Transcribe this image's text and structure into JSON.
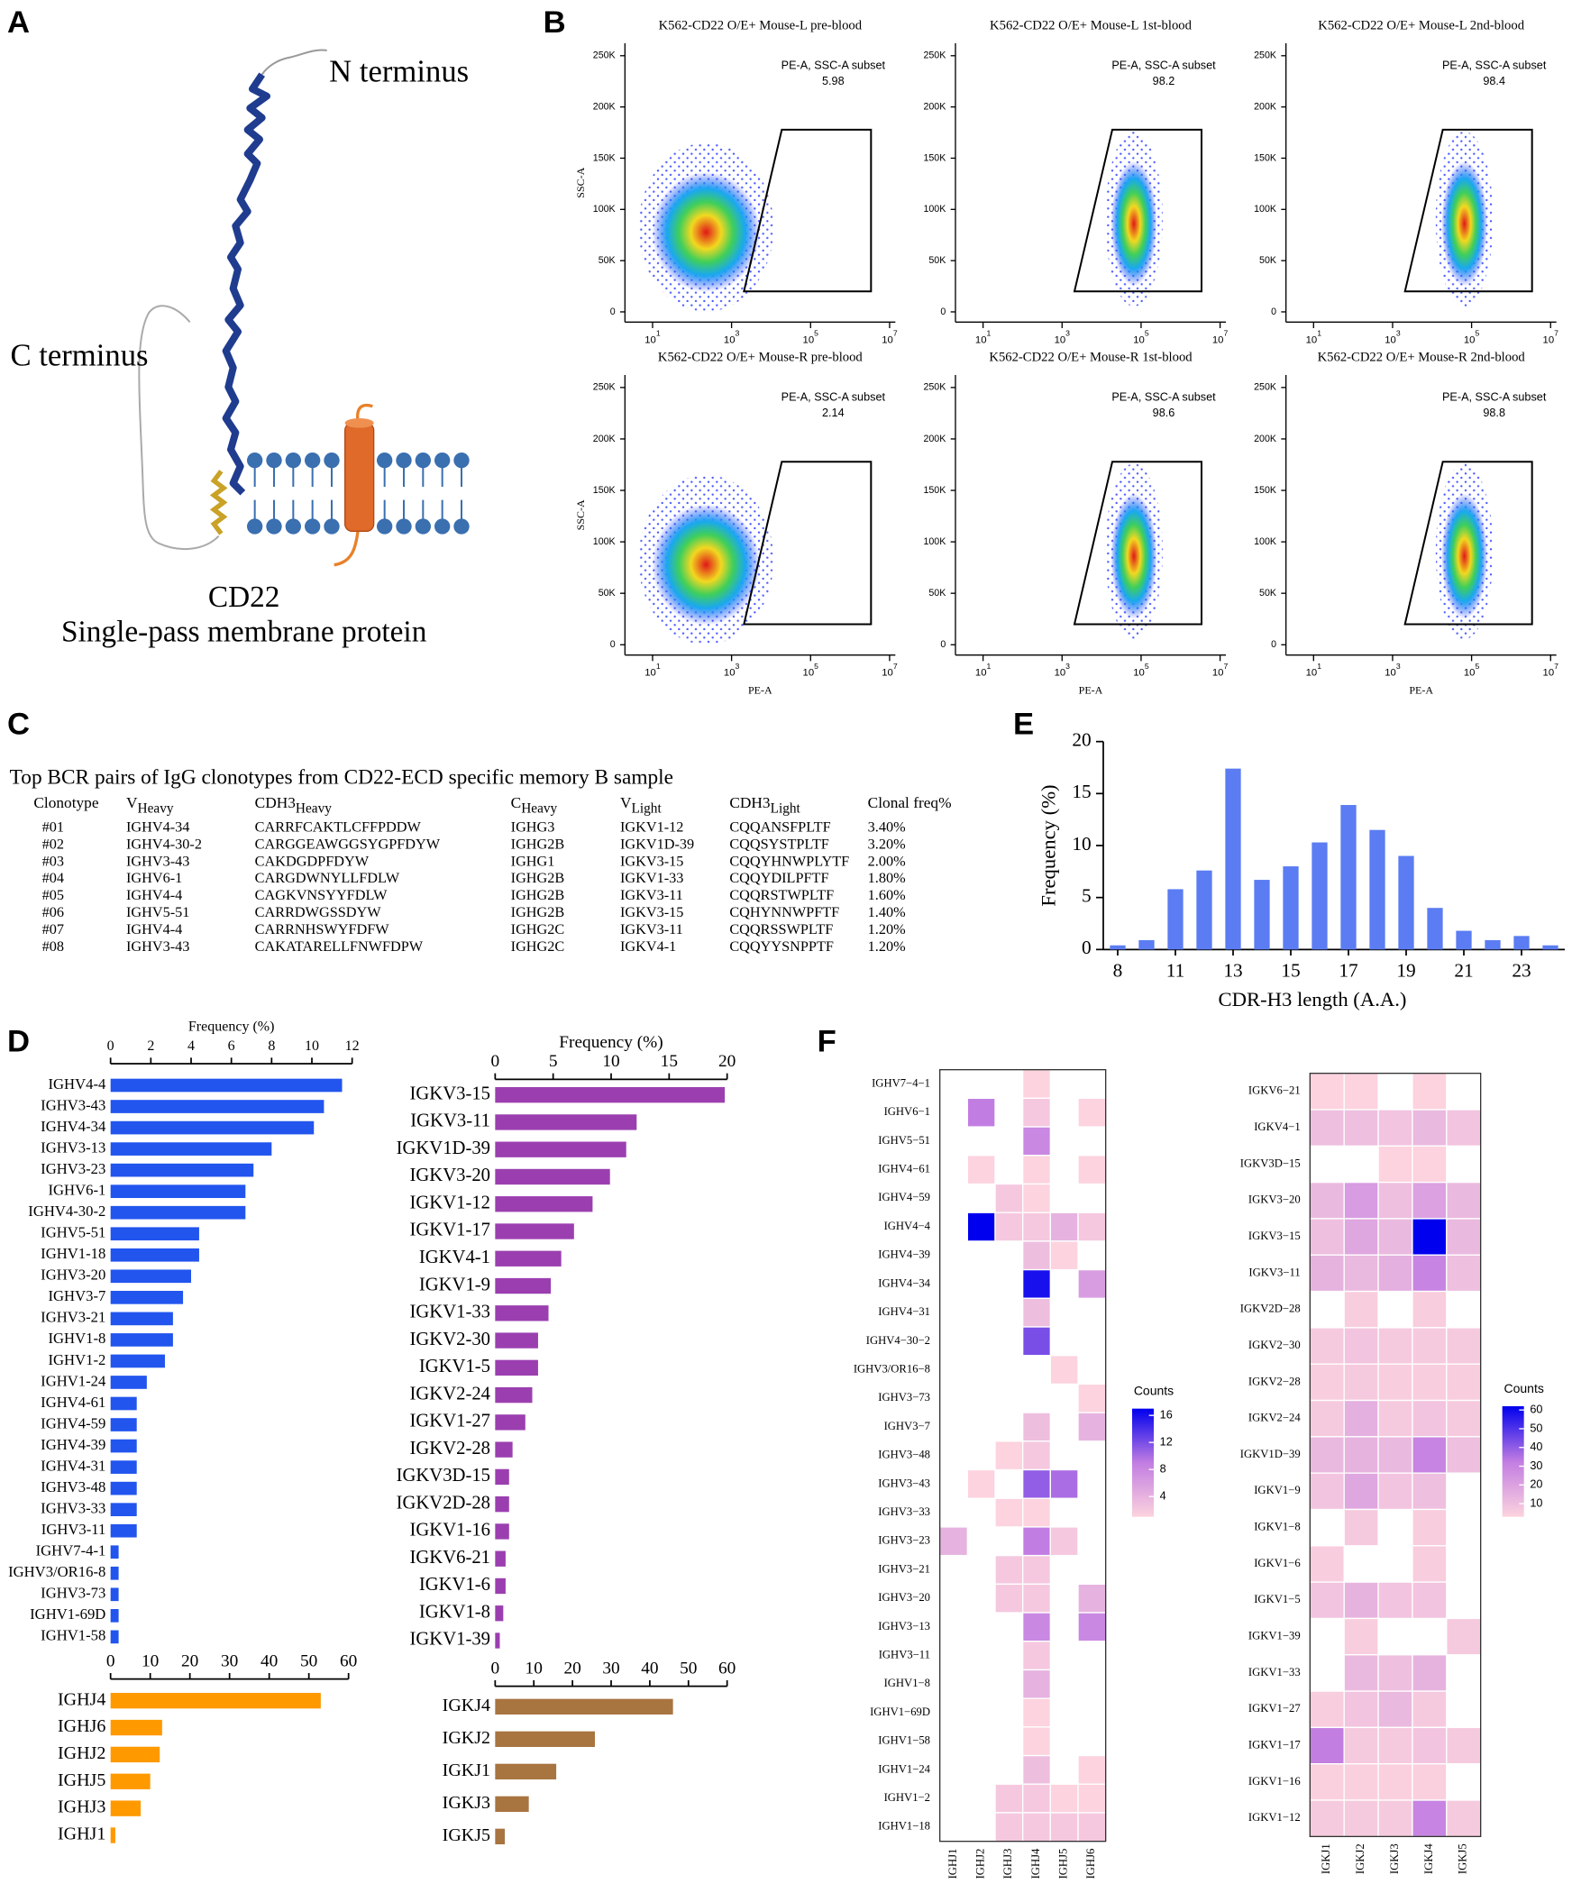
{
  "panel_labels": [
    "A",
    "B",
    "C",
    "D",
    "E",
    "F"
  ],
  "diagram": {
    "n_terminus": "N terminus",
    "c_terminus": "C terminus",
    "name": "CD22",
    "description": "Single-pass membrane protein"
  },
  "table": {
    "title": "Top BCR pairs of IgG clonotypes from CD22-ECD specific memory B sample",
    "header": [
      {
        "text": "Clonotype"
      },
      {
        "text": "V",
        "sub": "Heavy"
      },
      {
        "text": "CDH3",
        "sub": "Heavy"
      },
      {
        "text": "C",
        "sub": "Heavy"
      },
      {
        "text": "V",
        "sub": "Light"
      },
      {
        "text": "CDH3",
        "sub": "Light"
      },
      {
        "text": "Clonal freq%"
      }
    ],
    "rows": [
      [
        "#01",
        "IGHV4-34",
        "CARRFCAKTLCFFPDDW",
        "IGHG3",
        "IGKV1-12",
        "CQQANSFPLTF",
        "3.40%"
      ],
      [
        "#02",
        "IGHV4-30-2",
        "CARGGEAWGGSYGPFDYW",
        "IGHG2B",
        "IGKV1D-39",
        "CQQSYSTPLTF",
        "3.20%"
      ],
      [
        "#03",
        "IGHV3-43",
        "CAKDGDPFDYW",
        "IGHG1",
        "IGKV3-15",
        "CQQYHNWPLYTF",
        "2.00%"
      ],
      [
        "#04",
        "IGHV6-1",
        "CARGDWNYLLFDLW",
        "IGHG2B",
        "IGKV1-33",
        "CQQYDILPFTF",
        "1.80%"
      ],
      [
        "#05",
        "IGHV4-4",
        "CAGKVNSYYFDLW",
        "IGHG2B",
        "IGKV3-11",
        "CQQRSTWPLTF",
        "1.60%"
      ],
      [
        "#06",
        "IGHV5-51",
        "CARRDWGSSDYW",
        "IGHG2B",
        "IGKV3-15",
        "CQHYNNWPFTF",
        "1.40%"
      ],
      [
        "#07",
        "IGHV4-4",
        "CARRNHSWYFDFW",
        "IGHG2C",
        "IGKV3-11",
        "CQQRSSWPLTF",
        "1.20%"
      ],
      [
        "#08",
        "IGHV3-43",
        "CAKATARELLFNWFDPW",
        "IGHG2C",
        "IGKV4-1",
        "CQQYYSNPPTF",
        "1.20%"
      ]
    ]
  },
  "chart_data": [
    {
      "type": "flow",
      "title": "K562-CD22 O/E+ Mouse-L pre-blood",
      "gate_label": "PE-A, SSC-A subset",
      "gate_value": 5.98,
      "ylabel": "SSC-A",
      "xscale": "log",
      "xlim": [
        2,
        14000000
      ],
      "xticks": [
        {
          "value": 10,
          "label": "10",
          "sup": "1"
        },
        {
          "value": 1000,
          "label": "10",
          "sup": "3"
        },
        {
          "value": 100000,
          "label": "10",
          "sup": "5"
        },
        {
          "value": 10000000,
          "label": "10",
          "sup": "7"
        }
      ],
      "ylim": [
        -10000,
        262144
      ],
      "yticks": [
        0,
        {
          "value": 50000,
          "label": "50K"
        },
        {
          "value": 100000,
          "label": "100K"
        },
        {
          "value": 150000,
          "label": "150K"
        },
        {
          "value": 200000,
          "label": "200K"
        },
        {
          "value": 250000,
          "label": "250K"
        }
      ]
    },
    {
      "type": "flow",
      "title": "K562-CD22 O/E+ Mouse-L 1st-blood",
      "gate_label": "PE-A, SSC-A subset",
      "gate_value": 98.2,
      "xscale": "log",
      "xlim": [
        2,
        14000000
      ],
      "xticks": [
        {
          "value": 10,
          "label": "10",
          "sup": "1"
        },
        {
          "value": 1000,
          "label": "10",
          "sup": "3"
        },
        {
          "value": 100000,
          "label": "10",
          "sup": "5"
        },
        {
          "value": 10000000,
          "label": "10",
          "sup": "7"
        }
      ],
      "ylim": [
        -10000,
        262144
      ],
      "yticks": [
        0,
        {
          "value": 50000,
          "label": "50K"
        },
        {
          "value": 100000,
          "label": "100K"
        },
        {
          "value": 150000,
          "label": "150K"
        },
        {
          "value": 200000,
          "label": "200K"
        },
        {
          "value": 250000,
          "label": "250K"
        }
      ]
    },
    {
      "type": "flow",
      "title": "K562-CD22 O/E+ Mouse-L 2nd-blood",
      "gate_label": "PE-A, SSC-A subset",
      "gate_value": 98.4,
      "xscale": "log",
      "xlim": [
        2,
        14000000
      ],
      "xticks": [
        {
          "value": 10,
          "label": "10",
          "sup": "1"
        },
        {
          "value": 1000,
          "label": "10",
          "sup": "3"
        },
        {
          "value": 100000,
          "label": "10",
          "sup": "5"
        },
        {
          "value": 10000000,
          "label": "10",
          "sup": "7"
        }
      ],
      "ylim": [
        -10000,
        262144
      ],
      "yticks": [
        0,
        {
          "value": 50000,
          "label": "50K"
        },
        {
          "value": 100000,
          "label": "100K"
        },
        {
          "value": 150000,
          "label": "150K"
        },
        {
          "value": 200000,
          "label": "200K"
        },
        {
          "value": 250000,
          "label": "250K"
        }
      ]
    },
    {
      "type": "flow",
      "title": "K562-CD22 O/E+ Mouse-R pre-blood",
      "gate_label": "PE-A, SSC-A subset",
      "gate_value": 2.14,
      "ylabel": "SSC-A",
      "xlabel": "PE-A",
      "xscale": "log",
      "xlim": [
        2,
        14000000
      ],
      "xticks": [
        {
          "value": 10,
          "label": "10",
          "sup": "1"
        },
        {
          "value": 1000,
          "label": "10",
          "sup": "3"
        },
        {
          "value": 100000,
          "label": "10",
          "sup": "5"
        },
        {
          "value": 10000000,
          "label": "10",
          "sup": "7"
        }
      ],
      "ylim": [
        -10000,
        262144
      ],
      "yticks": [
        0,
        {
          "value": 50000,
          "label": "50K"
        },
        {
          "value": 100000,
          "label": "100K"
        },
        {
          "value": 150000,
          "label": "150K"
        },
        {
          "value": 200000,
          "label": "200K"
        },
        {
          "value": 250000,
          "label": "250K"
        }
      ]
    },
    {
      "type": "flow",
      "title": "K562-CD22 O/E+ Mouse-R 1st-blood",
      "gate_label": "PE-A, SSC-A subset",
      "gate_value": 98.6,
      "xlabel": "PE-A",
      "xscale": "log",
      "xlim": [
        2,
        14000000
      ],
      "xticks": [
        {
          "value": 10,
          "label": "10",
          "sup": "1"
        },
        {
          "value": 1000,
          "label": "10",
          "sup": "3"
        },
        {
          "value": 100000,
          "label": "10",
          "sup": "5"
        },
        {
          "value": 10000000,
          "label": "10",
          "sup": "7"
        }
      ],
      "ylim": [
        -10000,
        262144
      ],
      "yticks": [
        0,
        {
          "value": 50000,
          "label": "50K"
        },
        {
          "value": 100000,
          "label": "100K"
        },
        {
          "value": 150000,
          "label": "150K"
        },
        {
          "value": 200000,
          "label": "200K"
        },
        {
          "value": 250000,
          "label": "250K"
        }
      ]
    },
    {
      "type": "flow",
      "title": "K562-CD22 O/E+ Mouse-R 2nd-blood",
      "gate_label": "PE-A, SSC-A subset",
      "gate_value": 98.8,
      "xlabel": "PE-A",
      "xscale": "log",
      "xlim": [
        2,
        14000000
      ],
      "xticks": [
        {
          "value": 10,
          "label": "10",
          "sup": "1"
        },
        {
          "value": 1000,
          "label": "10",
          "sup": "3"
        },
        {
          "value": 100000,
          "label": "10",
          "sup": "5"
        },
        {
          "value": 10000000,
          "label": "10",
          "sup": "7"
        }
      ],
      "ylim": [
        -10000,
        262144
      ],
      "yticks": [
        0,
        {
          "value": 50000,
          "label": "50K"
        },
        {
          "value": 100000,
          "label": "100K"
        },
        {
          "value": 150000,
          "label": "150K"
        },
        {
          "value": 200000,
          "label": "200K"
        },
        {
          "value": 250000,
          "label": "250K"
        }
      ]
    },
    {
      "type": "bar",
      "xlabel": "CDR-H3 length (A.A.)",
      "ylabel": "Frequency (%)",
      "color": "#5b7cf2",
      "categories": [
        8,
        null,
        11,
        null,
        13,
        null,
        15,
        null,
        17,
        null,
        19,
        null,
        21,
        null,
        23,
        null
      ],
      "values": [
        0.4,
        0.9,
        5.8,
        7.6,
        17.4,
        6.7,
        8.0,
        10.3,
        13.9,
        11.5,
        9.0,
        4.0,
        1.8,
        0.9,
        1.3,
        0.4
      ],
      "ylim": [
        0,
        20
      ],
      "yticks": [
        0,
        5,
        10,
        15,
        20
      ]
    },
    {
      "type": "barh",
      "xlabel": "Frequency (%)",
      "color": "#2255ee",
      "categories": [
        "IGHV4-4",
        "IGHV3-43",
        "IGHV4-34",
        "IGHV3-13",
        "IGHV3-23",
        "IGHV6-1",
        "IGHV4-30-2",
        "IGHV5-51",
        "IGHV1-18",
        "IGHV3-20",
        "IGHV3-7",
        "IGHV3-21",
        "IGHV1-8",
        "IGHV1-2",
        "IGHV1-24",
        "IGHV4-61",
        "IGHV4-59",
        "IGHV4-39",
        "IGHV4-31",
        "IGHV3-48",
        "IGHV3-33",
        "IGHV3-11",
        "IGHV7-4-1",
        "IGHV3/OR16-8",
        "IGHV3-73",
        "IGHV1-69D",
        "IGHV1-58"
      ],
      "values": [
        11.5,
        10.6,
        10.1,
        8.0,
        7.1,
        6.7,
        6.7,
        4.4,
        4.4,
        4.0,
        3.6,
        3.1,
        3.1,
        2.7,
        1.8,
        1.3,
        1.3,
        1.3,
        1.3,
        1.3,
        1.3,
        1.3,
        0.4,
        0.4,
        0.4,
        0.4,
        0.4
      ],
      "xlim": [
        0,
        12
      ],
      "xticks": [
        0,
        2,
        4,
        6,
        8,
        10,
        12
      ]
    },
    {
      "type": "barh",
      "xlabel": "Frequency (%)",
      "color": "#9b3fb0",
      "categories": [
        "IGKV3-15",
        "IGKV3-11",
        "IGKV1D-39",
        "IGKV3-20",
        "IGKV1-12",
        "IGKV1-17",
        "IGKV4-1",
        "IGKV1-9",
        "IGKV1-33",
        "IGKV2-30",
        "IGKV1-5",
        "IGKV2-24",
        "IGKV1-27",
        "IGKV2-28",
        "IGKV3D-15",
        "IGKV2D-28",
        "IGKV1-16",
        "IGKV6-21",
        "IGKV1-6",
        "IGKV1-8",
        "IGKV1-39"
      ],
      "values": [
        19.8,
        12.2,
        11.3,
        9.9,
        8.4,
        6.8,
        5.7,
        4.8,
        4.6,
        3.7,
        3.7,
        3.2,
        2.6,
        1.5,
        1.2,
        1.2,
        1.2,
        0.9,
        0.9,
        0.7,
        0.4
      ],
      "xlim": [
        0,
        20
      ],
      "xticks": [
        0,
        5,
        10,
        15,
        20
      ]
    },
    {
      "type": "barh",
      "color": "#ff9900",
      "categories": [
        "IGHJ4",
        "IGHJ6",
        "IGHJ2",
        "IGHJ5",
        "IGHJ3",
        "IGHJ1"
      ],
      "values": [
        53,
        13,
        12.4,
        10,
        7.6,
        1.2
      ],
      "xlim": [
        0,
        60
      ],
      "xticks": [
        0,
        10,
        20,
        30,
        40,
        50,
        60
      ]
    },
    {
      "type": "barh",
      "color": "#a87440",
      "categories": [
        "IGKJ4",
        "IGKJ2",
        "IGKJ1",
        "IGKJ3",
        "IGKJ5"
      ],
      "values": [
        46,
        25.8,
        15.8,
        8.7,
        2.5
      ],
      "xlim": [
        0,
        60
      ],
      "xticks": [
        0,
        10,
        20,
        30,
        40,
        50,
        60
      ]
    },
    {
      "type": "heatmap",
      "colorbar_label": "Counts",
      "clim": [
        1,
        17
      ],
      "cticks": [
        4,
        8,
        12,
        16
      ],
      "colormap": [
        "#fcd3de",
        "#c27de2",
        "#0000ee"
      ],
      "columns": [
        "IGHJ1",
        "IGHJ2",
        "IGHJ3",
        "IGHJ4",
        "IGHJ5",
        "IGHJ6"
      ],
      "rows": [
        "IGHV7−4−1",
        "IGHV6−1",
        "IGHV5−51",
        "IGHV4−61",
        "IGHV4−59",
        "IGHV4−4",
        "IGHV4−39",
        "IGHV4−34",
        "IGHV4−31",
        "IGHV4−30−2",
        "IGHV3/OR16−8",
        "IGHV3−73",
        "IGHV3−7",
        "IGHV3−48",
        "IGHV3−43",
        "IGHV3−33",
        "IGHV3−23",
        "IGHV3−21",
        "IGHV3−20",
        "IGHV3−13",
        "IGHV3−11",
        "IGHV1−8",
        "IGHV1−69D",
        "IGHV1−58",
        "IGHV1−24",
        "IGHV1−2",
        "IGHV1−18"
      ],
      "values": [
        [
          null,
          null,
          null,
          1,
          null,
          null
        ],
        [
          null,
          9,
          null,
          2,
          null,
          1
        ],
        [
          null,
          null,
          null,
          8,
          null,
          null
        ],
        [
          null,
          1,
          null,
          1,
          null,
          1
        ],
        [
          null,
          null,
          2,
          1,
          null,
          null
        ],
        [
          null,
          17,
          2,
          2,
          4,
          2
        ],
        [
          null,
          null,
          null,
          3,
          1,
          null
        ],
        [
          null,
          null,
          null,
          16,
          null,
          6
        ],
        [
          null,
          null,
          null,
          3,
          null,
          null
        ],
        [
          null,
          null,
          null,
          12,
          null,
          null
        ],
        [
          null,
          null,
          null,
          null,
          1,
          null
        ],
        [
          null,
          null,
          null,
          null,
          null,
          1
        ],
        [
          null,
          null,
          null,
          3,
          null,
          4
        ],
        [
          null,
          null,
          1,
          2,
          null,
          null
        ],
        [
          null,
          1,
          null,
          11,
          10,
          null
        ],
        [
          null,
          null,
          1,
          1,
          null,
          null
        ],
        [
          4,
          null,
          null,
          9,
          2,
          null
        ],
        [
          null,
          null,
          2,
          2,
          null,
          null
        ],
        [
          null,
          null,
          2,
          2,
          null,
          4
        ],
        [
          null,
          null,
          null,
          8,
          null,
          8
        ],
        [
          null,
          null,
          null,
          2,
          null,
          null
        ],
        [
          null,
          null,
          null,
          4,
          null,
          null
        ],
        [
          null,
          null,
          null,
          1,
          null,
          null
        ],
        [
          null,
          null,
          null,
          1,
          null,
          null
        ],
        [
          null,
          null,
          null,
          3,
          null,
          1
        ],
        [
          null,
          null,
          2,
          2,
          1,
          1
        ],
        [
          null,
          null,
          2,
          2,
          2,
          2
        ]
      ]
    },
    {
      "type": "heatmap",
      "colorbar_label": "Counts",
      "clim": [
        3,
        62
      ],
      "cticks": [
        10,
        20,
        30,
        40,
        50,
        60
      ],
      "colormap": [
        "#fcd3de",
        "#c27de2",
        "#0000ee"
      ],
      "columns": [
        "IGKJ1",
        "IGKJ2",
        "IGKJ3",
        "IGKJ4",
        "IGKJ5"
      ],
      "rows": [
        "IGKV6−21",
        "IGKV4−1",
        "IGKV3D−15",
        "IGKV3−20",
        "IGKV3−15",
        "IGKV3−11",
        "IGKV2D−28",
        "IGKV2−30",
        "IGKV2−28",
        "IGKV2−24",
        "IGKV1D−39",
        "IGKV1−9",
        "IGKV1−8",
        "IGKV1−6",
        "IGKV1−5",
        "IGKV1−39",
        "IGKV1−33",
        "IGKV1−27",
        "IGKV1−17",
        "IGKV1−16",
        "IGKV1−12"
      ],
      "values": [
        [
          3,
          3,
          null,
          3,
          null
        ],
        [
          10,
          10,
          8,
          12,
          8
        ],
        [
          null,
          null,
          3,
          3,
          null
        ],
        [
          12,
          22,
          10,
          20,
          12
        ],
        [
          10,
          18,
          12,
          62,
          12
        ],
        [
          14,
          12,
          15,
          30,
          10
        ],
        [
          null,
          5,
          null,
          5,
          null
        ],
        [
          6,
          8,
          6,
          6,
          6
        ],
        [
          5,
          6,
          5,
          5,
          5
        ],
        [
          6,
          15,
          6,
          8,
          6
        ],
        [
          12,
          14,
          12,
          30,
          10
        ],
        [
          8,
          18,
          8,
          10,
          null
        ],
        [
          null,
          6,
          null,
          5,
          null
        ],
        [
          5,
          null,
          null,
          5,
          null
        ],
        [
          8,
          14,
          8,
          8,
          null
        ],
        [
          null,
          5,
          null,
          null,
          6
        ],
        [
          null,
          12,
          10,
          14,
          null
        ],
        [
          5,
          8,
          12,
          6,
          null
        ],
        [
          32,
          6,
          6,
          8,
          6
        ],
        [
          4,
          4,
          4,
          4,
          null
        ],
        [
          6,
          6,
          6,
          30,
          6
        ]
      ]
    }
  ]
}
